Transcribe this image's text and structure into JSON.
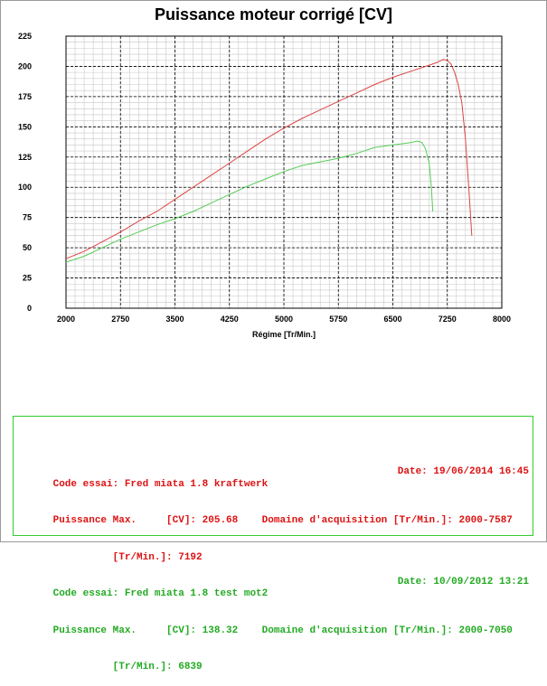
{
  "chart_data": {
    "type": "line",
    "title": "Puissance moteur corrigé [CV]",
    "xlabel": "Régime [Tr/Min.]",
    "ylabel": "",
    "xlim": [
      2000,
      8000
    ],
    "ylim": [
      0,
      225
    ],
    "xticks": [
      "2000",
      "2750",
      "3500",
      "4250",
      "5000",
      "5750",
      "6500",
      "7250",
      "8000"
    ],
    "yticks": [
      "0",
      "25",
      "50",
      "75",
      "100",
      "125",
      "150",
      "175",
      "200",
      "225"
    ],
    "grid": true,
    "series": [
      {
        "color": "#dd4444",
        "x": [
          2000,
          2250,
          2500,
          2750,
          3000,
          3250,
          3500,
          3750,
          4000,
          4250,
          4500,
          4750,
          5000,
          5250,
          5500,
          5750,
          6000,
          6250,
          6500,
          6750,
          7000,
          7100,
          7192,
          7250,
          7300,
          7350,
          7400,
          7450,
          7500,
          7550,
          7587
        ],
        "y": [
          41,
          47,
          55,
          63,
          72,
          80,
          90,
          100,
          110,
          120,
          130,
          140,
          149,
          157,
          164,
          171,
          178,
          185,
          191,
          196,
          201,
          203,
          205.68,
          205,
          202,
          195,
          185,
          170,
          140,
          95,
          60
        ]
      },
      {
        "color": "#55cc55",
        "x": [
          2000,
          2250,
          2500,
          2750,
          3000,
          3250,
          3500,
          3750,
          4000,
          4250,
          4500,
          4750,
          5000,
          5250,
          5500,
          5750,
          6000,
          6250,
          6500,
          6750,
          6839,
          6900,
          6950,
          7000,
          7030,
          7050
        ],
        "y": [
          38,
          43,
          50,
          57,
          63,
          69,
          74,
          80,
          87,
          94,
          101,
          107,
          113,
          118,
          121,
          124,
          128,
          133,
          135,
          137,
          138.32,
          137,
          132,
          120,
          100,
          80
        ]
      }
    ]
  },
  "info": {
    "test1": {
      "code": "Code essai: Fred miata 1.8 kraftwerk",
      "date": "Date: 19/06/2014 16:45",
      "power": "Puissance Max.     [CV]: 205.68    Domaine d'acquisition [Tr/Min.]: 2000-7587",
      "rpm": "          [Tr/Min.]: 7192"
    },
    "test2": {
      "code": "Code essai: Fred miata 1.8 test mot2",
      "date": "Date: 10/09/2012 13:21",
      "power": "Puissance Max.     [CV]: 138.32    Domaine d'acquisition [Tr/Min.]: 2000-7050",
      "rpm": "          [Tr/Min.]: 6839"
    }
  }
}
